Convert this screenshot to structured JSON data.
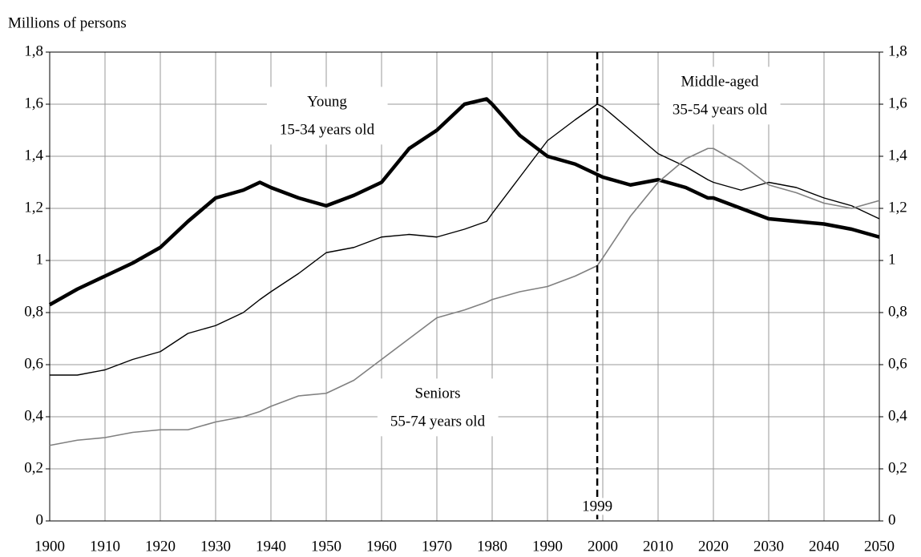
{
  "chart_data": {
    "type": "line",
    "y_label": "Millions of persons",
    "x": [
      1900,
      1905,
      1910,
      1915,
      1920,
      1925,
      1930,
      1935,
      1938,
      1940,
      1945,
      1950,
      1955,
      1960,
      1965,
      1970,
      1975,
      1979,
      1980,
      1985,
      1990,
      1995,
      1999,
      2000,
      2005,
      2010,
      2015,
      2019,
      2020,
      2025,
      2030,
      2035,
      2040,
      2045,
      2050
    ],
    "series": [
      {
        "name": "Young",
        "label": "15-34 years old",
        "color": "#000000",
        "values": [
          0.83,
          0.89,
          0.94,
          0.99,
          1.05,
          1.15,
          1.24,
          1.27,
          1.3,
          1.28,
          1.24,
          1.21,
          1.25,
          1.3,
          1.43,
          1.5,
          1.6,
          1.62,
          1.6,
          1.48,
          1.4,
          1.37,
          1.33,
          1.32,
          1.29,
          1.31,
          1.28,
          1.24,
          1.24,
          1.2,
          1.16,
          1.15,
          1.14,
          1.12,
          1.09
        ]
      },
      {
        "name": "Middle-aged",
        "label": "35-54 years old",
        "color": "#000000",
        "values": [
          0.56,
          0.56,
          0.58,
          0.62,
          0.65,
          0.72,
          0.75,
          0.8,
          0.85,
          0.88,
          0.95,
          1.03,
          1.05,
          1.09,
          1.1,
          1.09,
          1.12,
          1.15,
          1.18,
          1.32,
          1.46,
          1.54,
          1.6,
          1.59,
          1.5,
          1.41,
          1.36,
          1.31,
          1.3,
          1.27,
          1.3,
          1.28,
          1.24,
          1.21,
          1.16
        ]
      },
      {
        "name": "Seniors",
        "label": "55-74 years old",
        "color": "#808080",
        "values": [
          0.29,
          0.31,
          0.32,
          0.34,
          0.35,
          0.35,
          0.38,
          0.4,
          0.42,
          0.44,
          0.48,
          0.49,
          0.54,
          0.62,
          0.7,
          0.78,
          0.81,
          0.84,
          0.85,
          0.88,
          0.9,
          0.94,
          0.98,
          1.01,
          1.17,
          1.3,
          1.39,
          1.43,
          1.43,
          1.37,
          1.29,
          1.26,
          1.22,
          1.2,
          1.23
        ]
      }
    ],
    "vline": 1999,
    "xlim": [
      1900,
      2050
    ],
    "xticks": [
      1900,
      1910,
      1920,
      1930,
      1940,
      1950,
      1960,
      1970,
      1980,
      1990,
      2000,
      2010,
      2020,
      2030,
      2040,
      2050
    ],
    "ylim": [
      0,
      1.8
    ],
    "yticks": [
      0,
      {
        "value": 0.2,
        "label": "0,2"
      },
      {
        "value": 0.4,
        "label": "0,4"
      },
      {
        "value": 0.6,
        "label": "0,6"
      },
      {
        "value": 0.8,
        "label": "0,8"
      },
      1,
      {
        "value": 1.2,
        "label": "1,2"
      },
      {
        "value": 1.4,
        "label": "1,4"
      },
      {
        "value": 1.6,
        "label": "1,6"
      },
      {
        "value": 1.8,
        "label": "1,8"
      }
    ],
    "y2lim": [
      0,
      1.8
    ],
    "y2ticks": [
      0,
      {
        "value": 0.2,
        "label": "0,2"
      },
      {
        "value": 0.4,
        "label": "0,4"
      },
      {
        "value": 0.6,
        "label": "0,6"
      },
      {
        "value": 0.8,
        "label": "0,8"
      },
      1,
      {
        "value": 1.2,
        "label": "1,2"
      },
      {
        "value": 1.4,
        "label": "1,4"
      },
      {
        "value": 1.6,
        "label": "1,6"
      },
      {
        "value": 1.8,
        "label": "1,8"
      }
    ],
    "grid": true
  }
}
